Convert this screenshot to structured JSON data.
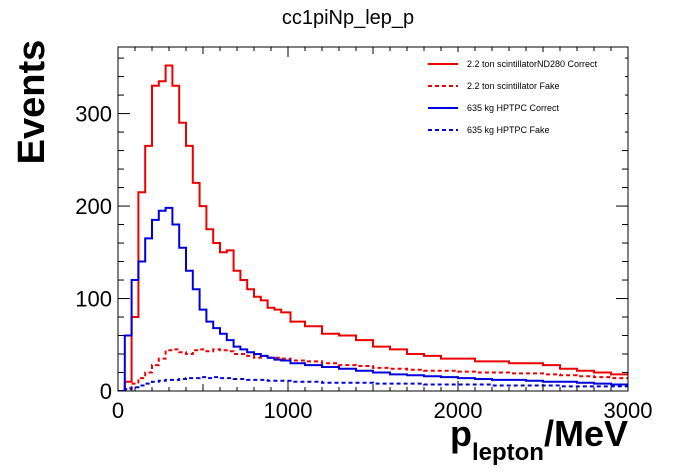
{
  "chart_data": {
    "type": "line",
    "title": "cc1piNp_lep_p",
    "ylabel": "Events",
    "xlabel_main": "p",
    "xlabel_sub": "lepton",
    "xlabel_unit": "/MeV",
    "xlim": [
      0,
      3000
    ],
    "ylim": [
      0,
      372
    ],
    "xticks": [
      0,
      1000,
      2000,
      3000
    ],
    "xtick_labels": [
      "0",
      "1000",
      "2000",
      "3000"
    ],
    "yticks": [
      0,
      100,
      200,
      300
    ],
    "ytick_labels": [
      "0",
      "100",
      "200",
      "300"
    ],
    "grid": false,
    "legend_position": "top-right",
    "x": [
      20,
      60,
      100,
      140,
      180,
      220,
      260,
      300,
      340,
      380,
      420,
      460,
      500,
      540,
      580,
      620,
      660,
      700,
      740,
      780,
      820,
      860,
      900,
      940,
      980,
      1050,
      1150,
      1250,
      1350,
      1450,
      1550,
      1650,
      1750,
      1850,
      1950,
      2050,
      2150,
      2250,
      2350,
      2450,
      2550,
      2650,
      2750,
      2850,
      2950
    ],
    "series": [
      {
        "name": "2.2 ton scintillatorND280 Correct",
        "color": "#ee0000",
        "style": "solid",
        "values": [
          0,
          10,
          80,
          215,
          265,
          330,
          335,
          352,
          330,
          290,
          265,
          225,
          200,
          175,
          160,
          150,
          152,
          130,
          120,
          110,
          102,
          98,
          90,
          88,
          85,
          75,
          70,
          62,
          60,
          55,
          48,
          45,
          40,
          38,
          35,
          35,
          32,
          32,
          30,
          30,
          28,
          24,
          22,
          20,
          18
        ]
      },
      {
        "name": "2.2 ton scintillator Fake",
        "color": "#ee0000",
        "style": "dashed",
        "values": [
          0,
          3,
          8,
          14,
          20,
          28,
          35,
          44,
          45,
          42,
          40,
          44,
          45,
          43,
          45,
          44,
          43,
          40,
          40,
          38,
          36,
          38,
          36,
          36,
          35,
          33,
          32,
          30,
          28,
          27,
          25,
          24,
          23,
          22,
          22,
          21,
          20,
          20,
          19,
          19,
          18,
          17,
          16,
          15,
          14
        ]
      },
      {
        "name": "635 kg HPTPC Correct",
        "color": "#0000dd",
        "style": "solid",
        "values": [
          0,
          60,
          120,
          140,
          165,
          185,
          195,
          198,
          180,
          155,
          130,
          110,
          88,
          75,
          68,
          62,
          55,
          48,
          45,
          42,
          40,
          38,
          36,
          34,
          33,
          30,
          28,
          26,
          24,
          22,
          20,
          18,
          17,
          16,
          15,
          14,
          13,
          12,
          12,
          11,
          10,
          10,
          9,
          8,
          7
        ]
      },
      {
        "name": "635 kg HPTPC Fake",
        "color": "#0000dd",
        "style": "dashed",
        "values": [
          0,
          2,
          4,
          6,
          8,
          10,
          11,
          12,
          12,
          13,
          14,
          14,
          15,
          14,
          15,
          14,
          14,
          13,
          13,
          12,
          12,
          12,
          11,
          11,
          11,
          10,
          10,
          9,
          9,
          9,
          8,
          8,
          8,
          7,
          7,
          7,
          7,
          6,
          6,
          6,
          6,
          5,
          5,
          5,
          5
        ]
      }
    ]
  }
}
